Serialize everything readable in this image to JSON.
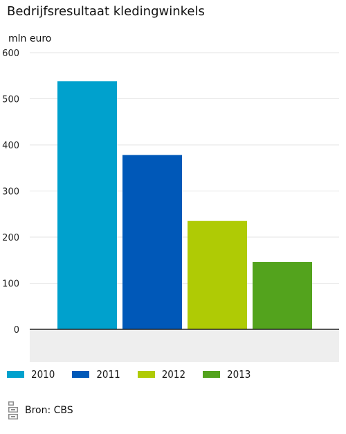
{
  "chart_data": {
    "type": "bar",
    "title": "Bedrijfsresultaat kledingwinkels",
    "ylabel": "mln euro",
    "xlabel": "",
    "categories": [
      "2010",
      "2011",
      "2012",
      "2013"
    ],
    "values": [
      538,
      378,
      235,
      146
    ],
    "colors": [
      "#00a1cd",
      "#0058b8",
      "#afcb05",
      "#53a31d"
    ],
    "ylim": [
      0,
      600
    ],
    "yticks": [
      "0",
      "100",
      "200",
      "300",
      "400",
      "500",
      "600"
    ],
    "grid": true,
    "legend": {
      "placement": "bottom",
      "entries": [
        "2010",
        "2011",
        "2012",
        "2013"
      ]
    }
  },
  "source": {
    "label": "Bron: CBS",
    "icon": "cbs-logo-icon"
  }
}
